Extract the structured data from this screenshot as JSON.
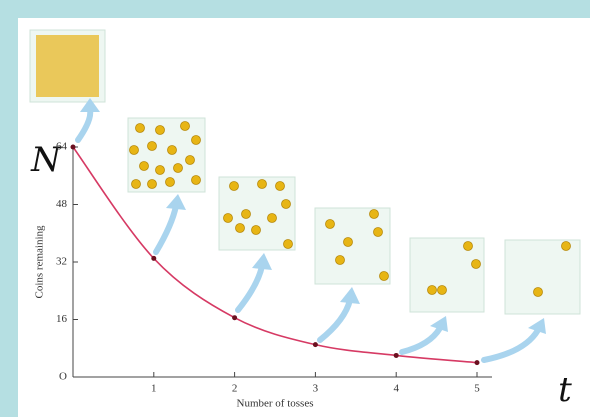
{
  "chart_data": {
    "type": "line",
    "x_label": "Number of tosses",
    "y_label": "Coins remaining",
    "annotations": [
      "N",
      "t"
    ],
    "x": [
      0,
      1,
      2,
      3,
      4,
      5
    ],
    "series": [
      {
        "name": "Coins remaining",
        "color": "#d63a64",
        "values": [
          64,
          33,
          16.5,
          9,
          6,
          4
        ]
      }
    ],
    "xlim": [
      0,
      5
    ],
    "xticks": [
      1,
      2,
      3,
      4,
      5
    ],
    "ylim": [
      0,
      64
    ],
    "yticks": [
      {
        "value": 0,
        "label": "O"
      },
      16,
      32,
      48,
      64
    ],
    "marker_color": "#6b1020"
  }
}
